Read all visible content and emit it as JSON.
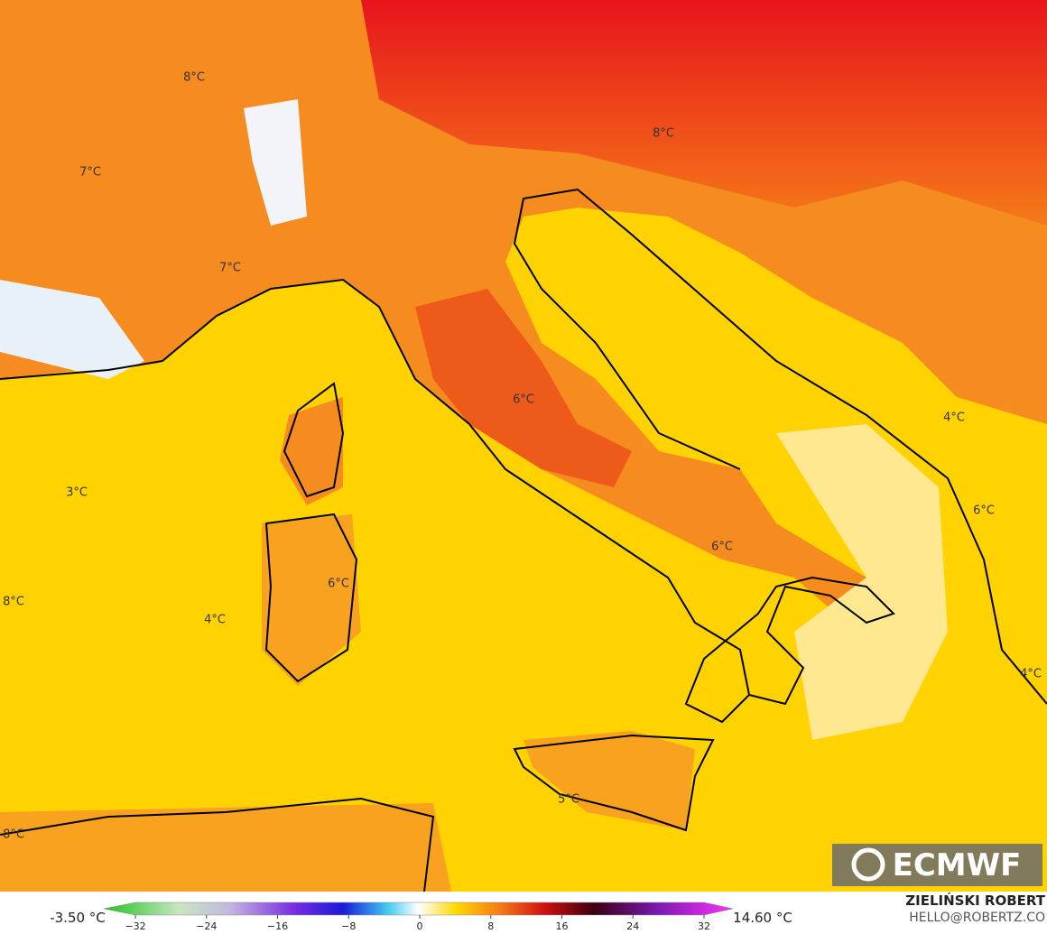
{
  "map_labels": [
    "8°C",
    "8°C",
    "7°C",
    "7°C",
    "6°C",
    "4°C",
    "3°C",
    "6°C",
    "6°C",
    "6°C",
    "8°C",
    "4°C",
    "4°C",
    "5°C",
    "8°C"
  ],
  "logo": "ECMWF",
  "colorbar": {
    "min_label": "-3.50 °C",
    "max_label": "14.60 °C",
    "ticks": [
      {
        "value": -32,
        "label": "−32"
      },
      {
        "value": -24,
        "label": "−24"
      },
      {
        "value": -16,
        "label": "−16"
      },
      {
        "value": -8,
        "label": "−8"
      },
      0,
      8,
      16,
      24,
      32
    ]
  },
  "credits": {
    "author": "ZIELIŃSKI ROBERT",
    "contact": "HELLO@ROBERTZ.CO"
  }
}
